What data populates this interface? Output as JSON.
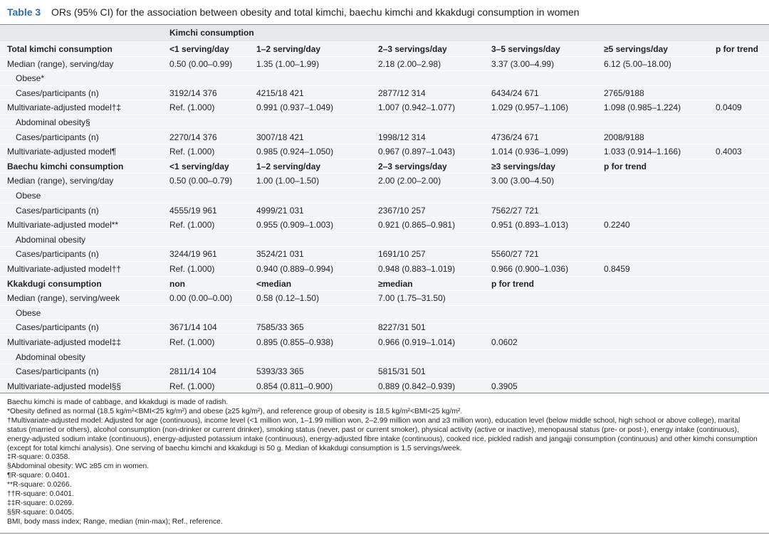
{
  "title": {
    "label": "Table 3",
    "text": "ORs (95% CI) for the association between obesity and total kimchi, baechu kimchi and kkakdugi consumption in women"
  },
  "table": {
    "group_header": "Kimchi consumption",
    "rows": [
      [
        "Total kimchi consumption",
        "<1 serving/day",
        "1–2 serving/day",
        "2–3 servings/day",
        "3–5 servings/day",
        "≥5 servings/day",
        "p for trend"
      ],
      [
        "Median (range), serving/day",
        "0.50 (0.00–0.99)",
        "1.35 (1.00–1.99)",
        "2.18 (2.00–2.98)",
        "3.37 (3.00–4.99)",
        "6.12 (5.00–18.00)"
      ],
      [
        "Obese*"
      ],
      [
        "Cases/participants (n)",
        "3192/14 376",
        "4215/18 421",
        "2877/12 314",
        "6434/24 671",
        "2765/9188"
      ],
      [
        "Multivariate-adjusted model†‡",
        "Ref. (1.000)",
        "0.991 (0.937–1.049)",
        "1.007 (0.942–1.077)",
        "1.029 (0.957–1.106)",
        "1.098 (0.985–1.224)",
        "0.0409"
      ],
      [
        "Abdominal obesity§"
      ],
      [
        "Cases/participants (n)",
        "2270/14 376",
        "3007/18 421",
        "1998/12 314",
        "4736/24 671",
        "2008/9188"
      ],
      [
        "Multivariate-adjusted model¶",
        "Ref. (1.000)",
        "0.985 (0.924–1.050)",
        "0.967 (0.897–1.043)",
        "1.014 (0.936–1.099)",
        "1.033 (0.914–1.166)",
        "0.4003"
      ],
      [
        "Baechu kimchi consumption",
        "<1 serving/day",
        "1–2 serving/day",
        "2–3 servings/day",
        "≥3 servings/day",
        "p for trend"
      ],
      [
        "Median (range), serving/day",
        "0.50 (0.00–0.79)",
        "1.00 (1.00–1.50)",
        "2.00 (2.00–2.00)",
        "3.00 (3.00–4.50)"
      ],
      [
        "Obese"
      ],
      [
        "Cases/participants (n)",
        "4555/19 961",
        "4999/21 031",
        "2367/10 257",
        "7562/27 721"
      ],
      [
        "Multivariate-adjusted model**",
        "Ref. (1.000)",
        "0.955 (0.909–1.003)",
        "0.921 (0.865–0.981)",
        "0.951 (0.893–1.013)",
        "0.2240"
      ],
      [
        "Abdominal obesity"
      ],
      [
        "Cases/participants (n)",
        "3244/19 961",
        "3524/21 031",
        "1691/10 257",
        "5560/27 721"
      ],
      [
        "Multivariate-adjusted model††",
        "Ref. (1.000)",
        "0.940 (0.889–0.994)",
        "0.948 (0.883–1.019)",
        "0.966 (0.900–1.036)",
        "0.8459"
      ],
      [
        "Kkakdugi consumption",
        "non",
        "<median",
        "≥median",
        "p for trend"
      ],
      [
        "Median (range), serving/week",
        "0.00 (0.00–0.00)",
        "0.58 (0.12–1.50)",
        "7.00 (1.75–31.50)"
      ],
      [
        "Obese"
      ],
      [
        "Cases/participants (n)",
        "3671/14 104",
        "7585/33 365",
        "8227/31 501"
      ],
      [
        "Multivariate-adjusted model‡‡",
        "Ref. (1.000)",
        "0.895 (0.855–0.938)",
        "0.966 (0.919–1.014)",
        "0.0602"
      ],
      [
        "Abdominal obesity"
      ],
      [
        "Cases/participants (n)",
        "2811/14 104",
        "5393/33 365",
        "5815/31 501"
      ],
      [
        "Multivariate-adjusted model§§",
        "Ref. (1.000)",
        "0.854 (0.811–0.900)",
        "0.889 (0.842–0.939)",
        "0.3905"
      ]
    ]
  },
  "footnotes": [
    "Baechu kimchi is made of cabbage, and kkakdugi is made of radish.",
    "*Obesity defined as normal (18.5 kg/m²<BMI<25 kg/m²) and obese (≥25 kg/m²), and reference group of obesity is 18.5 kg/m²<BMI<25 kg/m².",
    "†Multivariate-adjusted model: Adjusted for age (continuous), income level (<1 million won, 1–1.99 million won, 2–2.99 million won and ≥3 million won), education level (below middle school, high school or above college), marital status (married or others), alcohol consumption (non-drinker or current drinker), smoking status (never, past or current smoker), physical activity (active or inactive), menopausal status (pre- or post-), energy intake (continuous), energy-adjusted sodium intake (continuous), energy-adjusted potassium intake (continuous), energy-adjusted fibre intake (continuous), cooked rice, pickled radish and jangajji consumption (continuous) and other kimchi consumption (except for total kimchi analysis). One serving of baechu kimchi and kkakdugi is 50 g. Median of kkakdugi consumption is 1.5 servings/week.",
    "‡R-square: 0.0358.",
    "§Abdominal obesity: WC ≥85 cm in women.",
    "¶R-square: 0.0401.",
    "**R-square: 0.0266.",
    "††R-square: 0.0401.",
    "‡‡R-square: 0.0269.",
    "§§R-square: 0.0405.",
    "BMI, body mass index; Range, median (min-max); Ref., reference."
  ]
}
